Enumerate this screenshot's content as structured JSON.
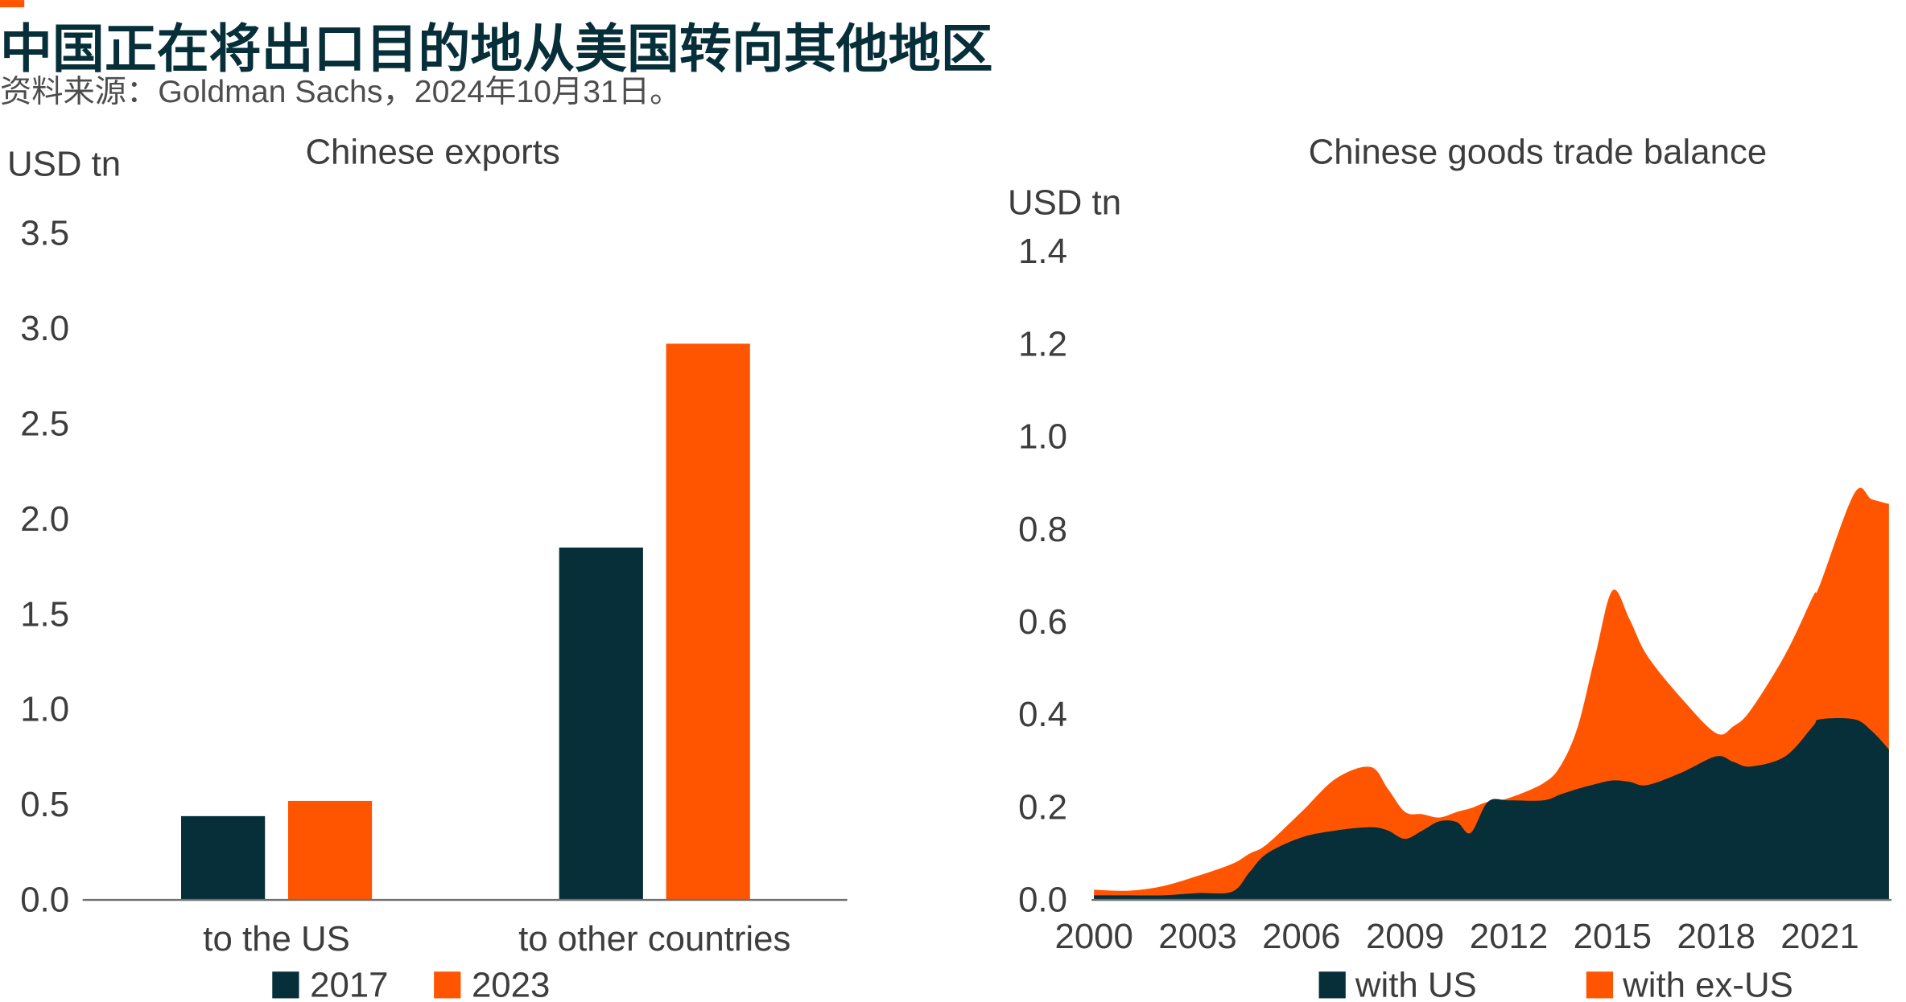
{
  "header": {
    "title": "中国正在将出口目的地从美国转向其他地区",
    "source": "资料来源：Goldman Sachs，2024年10月31日。"
  },
  "colors": {
    "dark": "#062f39",
    "orange": "#ff5500",
    "text": "#3d3d3d"
  },
  "chart_data": [
    {
      "type": "bar",
      "title": "Chinese exports",
      "ylabel": "USD tn",
      "categories": [
        "to the US",
        "to other countries"
      ],
      "series": [
        {
          "name": "2017",
          "values": [
            0.44,
            1.85
          ],
          "color": "#062f39"
        },
        {
          "name": "2023",
          "values": [
            0.52,
            2.92
          ],
          "color": "#ff5500"
        }
      ],
      "ylim": [
        0,
        3.5
      ],
      "yticks": [
        "0.0",
        "0.5",
        "1.0",
        "1.5",
        "2.0",
        "2.5",
        "3.0",
        "3.5"
      ],
      "grid": false,
      "legend": "bottom"
    },
    {
      "type": "area",
      "stacked": true,
      "title": "Chinese goods trade balance",
      "ylabel": "USD tn",
      "x": [
        2000,
        2001,
        2002,
        2003,
        2004,
        2004.5,
        2005,
        2006,
        2007,
        2008,
        2008.5,
        2009,
        2009.5,
        2010,
        2010.5,
        2010.9,
        2011.4,
        2012,
        2013,
        2013.5,
        2014,
        2014.5,
        2015,
        2015.5,
        2016,
        2017,
        2018,
        2018.5,
        2019,
        2020,
        2020.8,
        2021,
        2022,
        2022.5,
        2023
      ],
      "series": [
        {
          "name": "with US",
          "color": "#062f39",
          "values": [
            0.01,
            0.01,
            0.01,
            0.015,
            0.018,
            0.06,
            0.1,
            0.135,
            0.15,
            0.157,
            0.15,
            0.132,
            0.15,
            0.17,
            0.168,
            0.145,
            0.212,
            0.215,
            0.215,
            0.228,
            0.24,
            0.25,
            0.258,
            0.255,
            0.248,
            0.275,
            0.31,
            0.298,
            0.288,
            0.31,
            0.375,
            0.39,
            0.39,
            0.365,
            0.325
          ]
        },
        {
          "name": "with ex-US",
          "color": "#ff5500",
          "values": [
            0.012,
            0.01,
            0.02,
            0.037,
            0.06,
            0.04,
            0.02,
            0.055,
            0.112,
            0.13,
            0.09,
            0.058,
            0.035,
            0.008,
            0.022,
            0.053,
            0.0,
            0.005,
            0.037,
            0.062,
            0.135,
            0.277,
            0.41,
            0.35,
            0.28,
            0.16,
            0.05,
            0.077,
            0.122,
            0.22,
            0.28,
            0.29,
            0.488,
            0.5,
            0.53
          ]
        }
      ],
      "xlim": [
        2000,
        2023
      ],
      "ylim": [
        0,
        1.4
      ],
      "xticks": [
        "2000",
        "2003",
        "2006",
        "2009",
        "2012",
        "2015",
        "2018",
        "2021"
      ],
      "yticks": [
        "0.0",
        "0.2",
        "0.4",
        "0.6",
        "0.8",
        "1.0",
        "1.2",
        "1.4"
      ],
      "grid": false,
      "legend": "bottom"
    }
  ]
}
